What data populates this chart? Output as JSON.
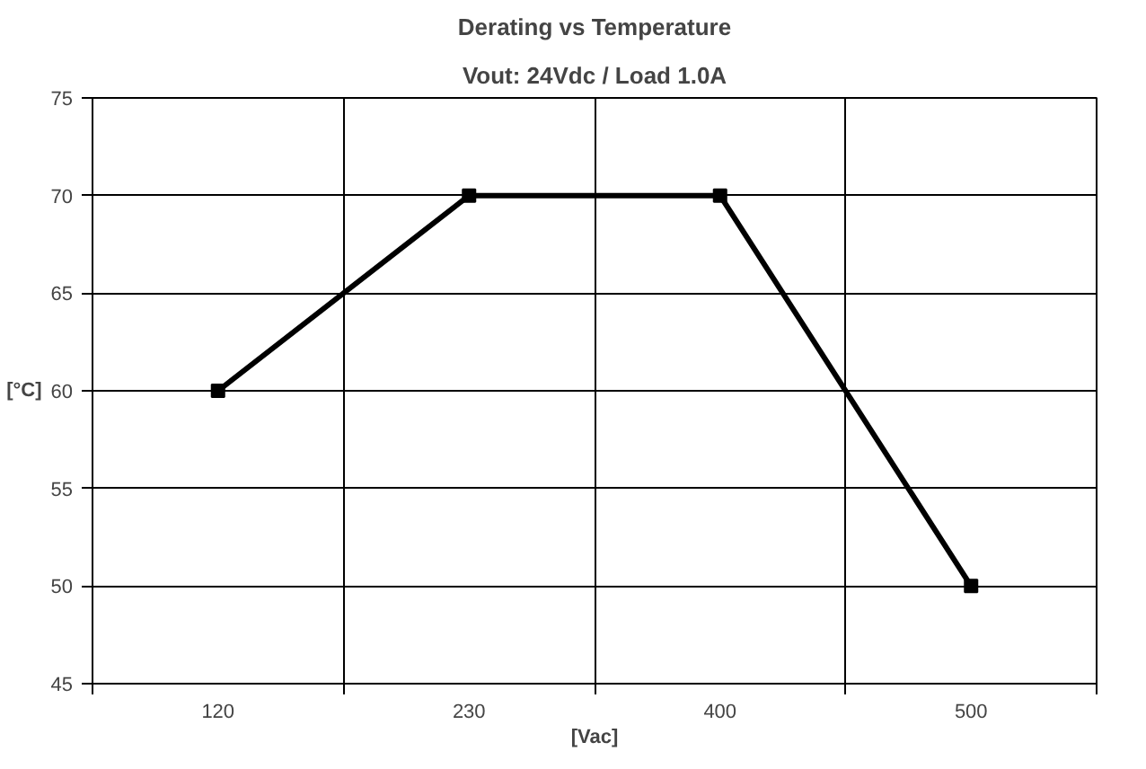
{
  "chart_data": {
    "type": "line",
    "title": "Derating vs Temperature",
    "subtitle": "Vout: 24Vdc / Load 1.0A",
    "xlabel": "[Vac]",
    "ylabel": "[°C]",
    "categories": [
      "120",
      "230",
      "400",
      "500"
    ],
    "series": [
      {
        "color": "#000000",
        "values": [
          60,
          70,
          70,
          50
        ]
      }
    ],
    "ylim": [
      45,
      75
    ],
    "yticks": [
      45,
      50,
      55,
      60,
      65,
      70,
      75
    ],
    "grid": true,
    "marker": "square",
    "line_style": "solid"
  }
}
